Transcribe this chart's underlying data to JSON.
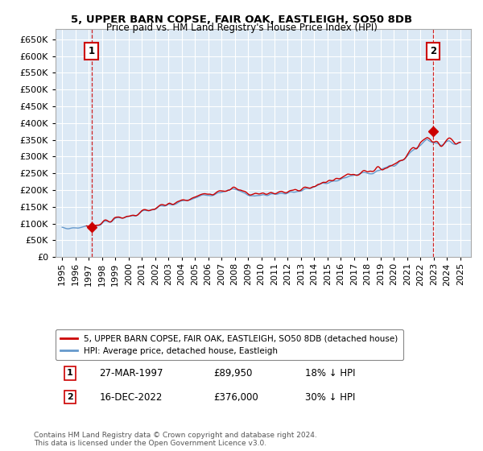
{
  "title": "5, UPPER BARN COPSE, FAIR OAK, EASTLEIGH, SO50 8DB",
  "subtitle": "Price paid vs. HM Land Registry's House Price Index (HPI)",
  "plot_bg_color": "#dce9f5",
  "grid_color": "#ffffff",
  "ylim": [
    0,
    680000
  ],
  "yticks": [
    0,
    50000,
    100000,
    150000,
    200000,
    250000,
    300000,
    350000,
    400000,
    450000,
    500000,
    550000,
    600000,
    650000
  ],
  "hpi_color": "#6699cc",
  "price_color": "#cc0000",
  "annotation1_date": "27-MAR-1997",
  "annotation1_price": "£89,950",
  "annotation1_label": "18% ↓ HPI",
  "annotation1_year": 1997.21,
  "annotation1_value": 89950,
  "annotation2_date": "16-DEC-2022",
  "annotation2_price": "£376,000",
  "annotation2_label": "30% ↓ HPI",
  "annotation2_year": 2022.96,
  "annotation2_value": 376000,
  "legend_label1": "5, UPPER BARN COPSE, FAIR OAK, EASTLEIGH, SO50 8DB (detached house)",
  "legend_label2": "HPI: Average price, detached house, Eastleigh",
  "footer1": "Contains HM Land Registry data © Crown copyright and database right 2024.",
  "footer2": "This data is licensed under the Open Government Licence v3.0."
}
